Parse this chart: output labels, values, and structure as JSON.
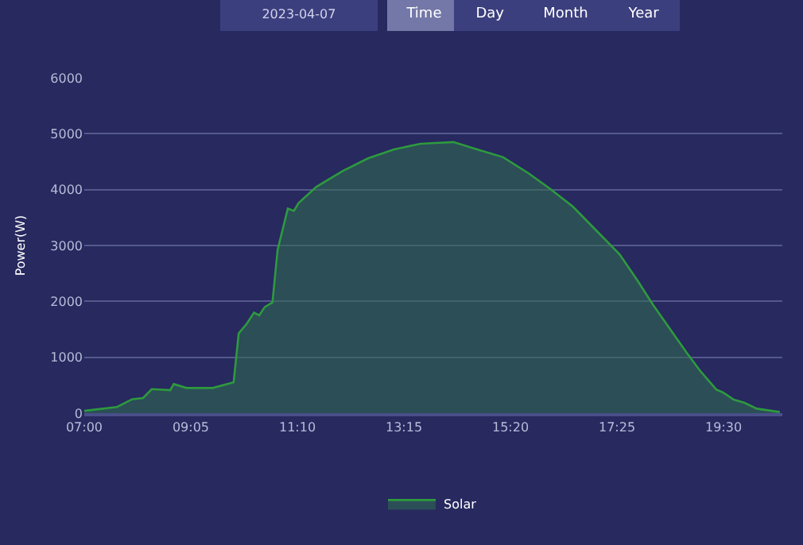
{
  "chart_data": {
    "type": "area",
    "ylabel": "Power(W)",
    "annotations": [
      "2023-04-07",
      "Time",
      "Day",
      "Month",
      "Year"
    ],
    "x": [
      7.0,
      7.64,
      7.94,
      8.15,
      8.32,
      8.68,
      8.75,
      9.0,
      9.51,
      9.92,
      10.02,
      10.17,
      10.32,
      10.42,
      10.53,
      10.68,
      10.78,
      10.98,
      11.1,
      11.19,
      11.54,
      12.05,
      12.55,
      13.06,
      13.57,
      13.77,
      14.22,
      14.68,
      15.19,
      15.69,
      16.1,
      16.55,
      17.01,
      17.47,
      17.82,
      18.12,
      18.48,
      18.78,
      19.04,
      19.36,
      19.49,
      19.7,
      19.9,
      20.15,
      20.6
    ],
    "series": [
      {
        "name": "Solar",
        "color": "#2e9a3e",
        "values": [
          40,
          110,
          250,
          270,
          430,
          410,
          520,
          450,
          450,
          550,
          1430,
          1590,
          1800,
          1750,
          1900,
          1980,
          2920,
          3660,
          3620,
          3760,
          4050,
          4330,
          4560,
          4720,
          4820,
          4830,
          4850,
          4720,
          4580,
          4290,
          4020,
          3700,
          3270,
          2840,
          2370,
          1940,
          1470,
          1080,
          760,
          420,
          370,
          240,
          190,
          80,
          20
        ]
      }
    ],
    "xlim": [
      7,
      20.65
    ],
    "xticks": [
      {
        "value": 7,
        "label": "07:00"
      },
      {
        "value": 9.0833,
        "label": "09:05"
      },
      {
        "value": 11.1667,
        "label": "11:10"
      },
      {
        "value": 13.25,
        "label": "13:15"
      },
      {
        "value": 15.3333,
        "label": "15:20"
      },
      {
        "value": 17.4167,
        "label": "17:25"
      },
      {
        "value": 19.5,
        "label": "19:30"
      }
    ],
    "ylim": [
      0,
      6000
    ],
    "yticks": [
      0,
      1000,
      2000,
      3000,
      4000,
      5000,
      6000
    ],
    "grid": "y",
    "legend": "bottom",
    "marker": "none",
    "line_style": "solid"
  }
}
